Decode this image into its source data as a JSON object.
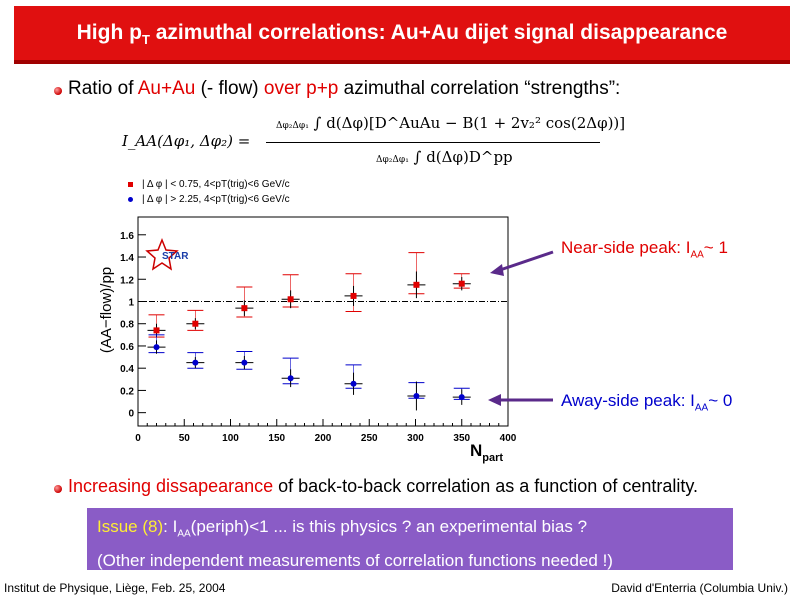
{
  "title": {
    "pre": "High p",
    "sub": "T",
    "post": " azimuthal correlations: Au+Au dijet signal disappearance"
  },
  "bullet1": {
    "t1": "Ratio of ",
    "t2": "Au+Au",
    "t3": " (- flow) ",
    "t4": "over p+p",
    "t5": " azimuthal correlation “strengths”:"
  },
  "formula": {
    "lhs": "I_AA(Δφ₁, Δφ₂) =",
    "numerator": "∫ d(Δφ)[D^AuAu − B(1 + 2v₂² cos(2Δφ))]",
    "denominator": "∫ d(Δφ)D^pp",
    "lim_upper": "Δφ₂",
    "lim_lower": "Δφ₁"
  },
  "colors": {
    "red": "#e00000",
    "blue": "#0000cc",
    "title_bg": "#e01010",
    "issue_bg": "#8a5cc6"
  },
  "chart_data": {
    "type": "scatter",
    "xlabel": "N_part",
    "ylabel": "(AA−flow)/pp",
    "xlim": [
      0,
      400
    ],
    "ylim": [
      -0.12,
      1.76
    ],
    "x_ticks": [
      0,
      50,
      100,
      150,
      200,
      250,
      300,
      350,
      400
    ],
    "y_ticks": [
      0,
      0.2,
      0.4,
      0.6,
      0.8,
      1,
      1.2,
      1.4,
      1.6
    ],
    "x_tick_labels": [
      "0",
      "50",
      "100",
      "150",
      "200",
      "250",
      "300",
      "350",
      "400"
    ],
    "y_tick_labels": [
      "0",
      "0.2",
      "0.4",
      "0.6",
      "0.8",
      "1",
      "1.2",
      "1.4",
      "1.6"
    ],
    "reference_line": 1.0,
    "legend_placement": "top-left",
    "series": [
      {
        "name": "| Δ φ | < 0.75, 4<p_T(trig)<6 GeV/c",
        "legend_text": "| Δ φ | < 0.75, 4<pT(trig)<6 GeV/c",
        "marker": "square",
        "color": "#e00000",
        "x": [
          20,
          62,
          115,
          165,
          233,
          301,
          350
        ],
        "y": [
          0.74,
          0.8,
          0.94,
          1.02,
          1.05,
          1.15,
          1.16
        ],
        "stat_err": [
          0.06,
          0.05,
          0.07,
          0.08,
          0.09,
          0.12,
          0.06
        ],
        "sys_up": [
          0.14,
          0.12,
          0.19,
          0.22,
          0.2,
          0.29,
          0.09
        ],
        "sys_down": [
          0.06,
          0.06,
          0.08,
          0.07,
          0.14,
          0.08,
          0.04
        ]
      },
      {
        "name": "| Δ φ | > 2.25, 4<p_T(trig)<6 GeV/c",
        "legend_text": "| Δ φ | > 2.25, 4<pT(trig)<6 GeV/c",
        "marker": "circle",
        "color": "#0000cc",
        "x": [
          20,
          62,
          115,
          165,
          233,
          301,
          350
        ],
        "y": [
          0.59,
          0.45,
          0.45,
          0.31,
          0.26,
          0.15,
          0.14
        ],
        "stat_err": [
          0.06,
          0.05,
          0.06,
          0.08,
          0.1,
          0.13,
          0.07
        ],
        "sys_up": [
          0.11,
          0.09,
          0.1,
          0.18,
          0.17,
          0.12,
          0.08
        ],
        "sys_down": [
          0.05,
          0.05,
          0.06,
          0.05,
          0.04,
          0.02,
          0.02
        ]
      }
    ]
  },
  "chart_text": {
    "ylabel": "(AA−flow)/pp",
    "xlabel_main": "N",
    "xlabel_sub": "part",
    "star_logo": "STAR"
  },
  "annotations": {
    "near_pre": "Near-side peak: I",
    "near_sub": "AA",
    "near_post": "~ 1",
    "away_pre": "Away-side peak: I",
    "away_sub": "AA",
    "away_post": "~ 0"
  },
  "bullet2": {
    "t1": "Increasing dissapearance",
    "t2": " of back-to-back correlation as a function of centrality."
  },
  "issue": {
    "t1": "Issue ",
    "t2": "(8)",
    "t3": ": I",
    "sub": "AA",
    "t4": "(periph)<1 ... is this physics ? an experimental bias ?",
    "line2": "(Other independent measurements of correlation functions needed !)"
  },
  "footer": {
    "left": "Institut de Physique, Liège, Feb. 25, 2004",
    "right": "David d'Enterria (Columbia Univ.)"
  }
}
